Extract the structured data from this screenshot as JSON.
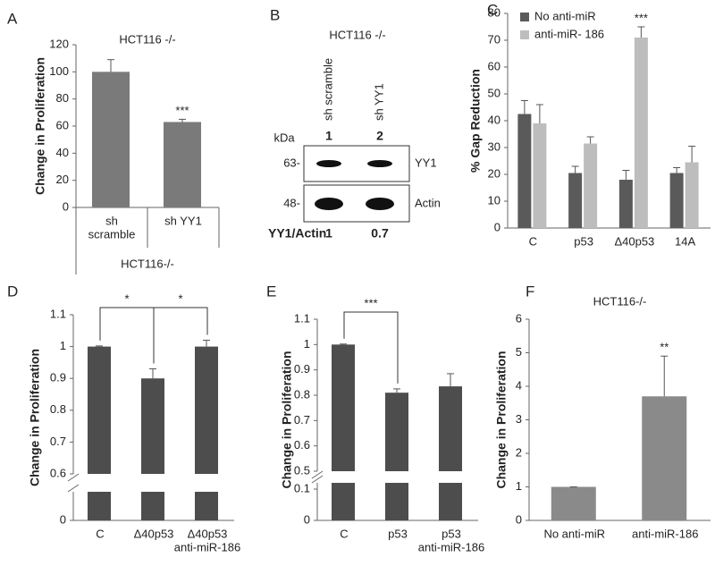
{
  "chart_data": [
    {
      "type": "bar",
      "panel": "A",
      "title": "HCT116 -/-",
      "ylabel": "Change in Proliferation",
      "categories": [
        [
          "sh",
          "scramble"
        ],
        [
          "sh YY1"
        ]
      ],
      "group_label": "HCT116-/-",
      "values": [
        100,
        63
      ],
      "errors": [
        9,
        2
      ],
      "color": "#7a7a7a",
      "ylim": [
        0,
        120
      ],
      "yticks": [
        0,
        20,
        40,
        60,
        80,
        100,
        120
      ],
      "stars": [
        {
          "index": 1,
          "label": "***"
        }
      ]
    },
    {
      "type": "blot",
      "panel": "B",
      "title": "HCT116 -/-",
      "lanes": [
        "sh scramble",
        "sh YY1"
      ],
      "lane_numbers": [
        "1",
        "2"
      ],
      "unit": "kDa",
      "markers": [
        {
          "value": 63,
          "label": "63-"
        },
        {
          "value": 48,
          "label": "48-"
        }
      ],
      "bands": [
        "YY1",
        "Actin"
      ],
      "ratio_label": "YY1/Actin",
      "ratios": [
        1,
        0.7
      ]
    },
    {
      "type": "bar",
      "panel": "C",
      "ylabel": "% Gap Reduction",
      "categories": [
        [
          "C"
        ],
        [
          "p53"
        ],
        [
          "Δ40p53"
        ],
        [
          "14A"
        ]
      ],
      "series": [
        {
          "name": "No anti-miR",
          "color": "#5a5a5a",
          "values": [
            42.5,
            20.5,
            18,
            20.5
          ],
          "errors": [
            5,
            2.5,
            3.5,
            2
          ]
        },
        {
          "name": "anti-miR- 186",
          "color": "#bdbdbd",
          "values": [
            39,
            31.5,
            71,
            24.5
          ],
          "errors": [
            7,
            2.5,
            4,
            6
          ]
        }
      ],
      "ylim": [
        0,
        80
      ],
      "yticks": [
        0,
        10,
        20,
        30,
        40,
        50,
        60,
        70,
        80
      ],
      "stars": [
        {
          "series": 1,
          "index": 2,
          "label": "***"
        }
      ]
    },
    {
      "type": "bar",
      "panel": "D",
      "ylabel": "Change in Proliferation",
      "categories": [
        [
          "C"
        ],
        [
          "Δ40p53"
        ],
        [
          "Δ40p53",
          "anti-miR-186"
        ]
      ],
      "values": [
        1,
        0.9,
        1
      ],
      "errors": [
        0.002,
        0.03,
        0.02
      ],
      "color": "#4d4d4d",
      "ylim_lower": [
        0,
        0.05
      ],
      "ylim": [
        0.6,
        1.1
      ],
      "yticks": [
        0,
        0.6,
        0.7,
        0.8,
        0.9,
        1,
        1.1
      ],
      "brackets": [
        {
          "from": 0,
          "to": 1,
          "label": "*"
        },
        {
          "from": 1,
          "to": 2,
          "label": "*"
        }
      ]
    },
    {
      "type": "bar",
      "panel": "E",
      "ylabel": "Change in Proliferation",
      "categories": [
        [
          "C"
        ],
        [
          "p53"
        ],
        [
          "p53",
          "anti-miR-186"
        ]
      ],
      "values": [
        1,
        0.81,
        0.835
      ],
      "errors": [
        0.002,
        0.015,
        0.05
      ],
      "color": "#4d4d4d",
      "ylim_lower": [
        0,
        0.12
      ],
      "ylim": [
        0.5,
        1.1
      ],
      "yticks": [
        0,
        0.1,
        0.5,
        0.6,
        0.7,
        0.8,
        0.9,
        1,
        1.1
      ],
      "brackets": [
        {
          "from": 0,
          "to": 1,
          "label": "***"
        }
      ]
    },
    {
      "type": "bar",
      "panel": "F",
      "title": "HCT116-/-",
      "ylabel": "Change in Proliferation",
      "categories": [
        [
          "No anti-miR"
        ],
        [
          "anti-miR-186"
        ]
      ],
      "values": [
        1,
        3.7
      ],
      "errors": [
        0,
        1.2
      ],
      "color": "#8a8a8a",
      "ylim": [
        0,
        6
      ],
      "yticks": [
        0,
        1,
        2,
        3,
        4,
        5,
        6
      ],
      "stars": [
        {
          "index": 1,
          "label": "**"
        }
      ]
    }
  ]
}
